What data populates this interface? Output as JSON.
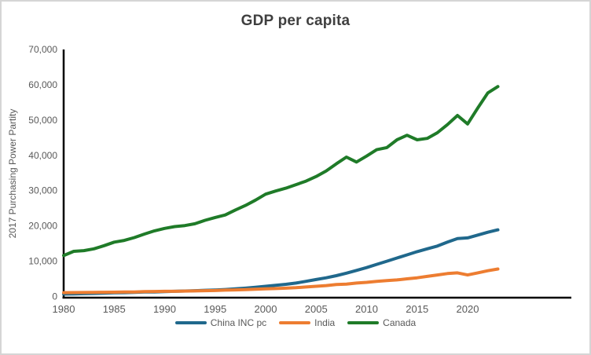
{
  "window": {
    "background": "#ffffff",
    "border_color": "#d5d5d5"
  },
  "chart": {
    "title": "GDP per capita",
    "y_axis_title": "2017 Purchasing Power Partity",
    "title_color": "#3f3f3f",
    "axis_text_color": "#595959",
    "axis_line_color": "#000000"
  },
  "chart_data": {
    "type": "line",
    "title": "GDP per capita",
    "xlabel": "",
    "ylabel": "2017 Purchasing Power Partity",
    "grid": false,
    "legend_position": "bottom",
    "ylim": [
      0,
      70000
    ],
    "yticks": [
      0,
      10000,
      20000,
      30000,
      40000,
      50000,
      60000,
      70000
    ],
    "ytick_labels": [
      "0",
      "10,000",
      "20,000",
      "30,000",
      "40,000",
      "50,000",
      "60,000",
      "70,000"
    ],
    "xticks": [
      1980,
      1985,
      1990,
      1995,
      2000,
      2005,
      2010,
      2015,
      2020
    ],
    "x": [
      1980,
      1981,
      1982,
      1983,
      1984,
      1985,
      1986,
      1987,
      1988,
      1989,
      1990,
      1991,
      1992,
      1993,
      1994,
      1995,
      1996,
      1997,
      1998,
      1999,
      2000,
      2001,
      2002,
      2003,
      2004,
      2005,
      2006,
      2007,
      2008,
      2009,
      2010,
      2011,
      2012,
      2013,
      2014,
      2015,
      2016,
      2017,
      2018,
      2019,
      2020,
      2021,
      2022,
      2023
    ],
    "series": [
      {
        "name": "China INC pc",
        "color": "#20688C",
        "values": [
          700,
          740,
          800,
          870,
          960,
          1050,
          1100,
          1180,
          1260,
          1300,
          1400,
          1480,
          1560,
          1650,
          1750,
          1850,
          1980,
          2150,
          2350,
          2600,
          2900,
          3150,
          3450,
          3800,
          4300,
          4800,
          5300,
          5900,
          6600,
          7400,
          8200,
          9100,
          10000,
          10900,
          11800,
          12700,
          13500,
          14300,
          15400,
          16400,
          16600,
          17400,
          18200,
          18900
        ]
      },
      {
        "name": "India",
        "color": "#ED7D31",
        "values": [
          1100,
          1120,
          1140,
          1180,
          1200,
          1230,
          1260,
          1300,
          1380,
          1420,
          1480,
          1470,
          1540,
          1580,
          1650,
          1700,
          1800,
          1870,
          1950,
          2050,
          2150,
          2250,
          2350,
          2500,
          2700,
          2900,
          3100,
          3400,
          3500,
          3800,
          4000,
          4300,
          4500,
          4700,
          5000,
          5300,
          5700,
          6100,
          6500,
          6700,
          6100,
          6700,
          7300,
          7800
        ]
      },
      {
        "name": "Canada",
        "color": "#1F7B28",
        "values": [
          11600,
          12800,
          13000,
          13500,
          14400,
          15400,
          15900,
          16700,
          17700,
          18600,
          19300,
          19800,
          20100,
          20600,
          21600,
          22400,
          23100,
          24500,
          25800,
          27300,
          29000,
          29900,
          30700,
          31700,
          32700,
          34000,
          35600,
          37600,
          39500,
          38100,
          39800,
          41600,
          42200,
          44400,
          45700,
          44400,
          44800,
          46400,
          48700,
          51300,
          48900,
          53400,
          57700,
          59500
        ]
      }
    ]
  }
}
